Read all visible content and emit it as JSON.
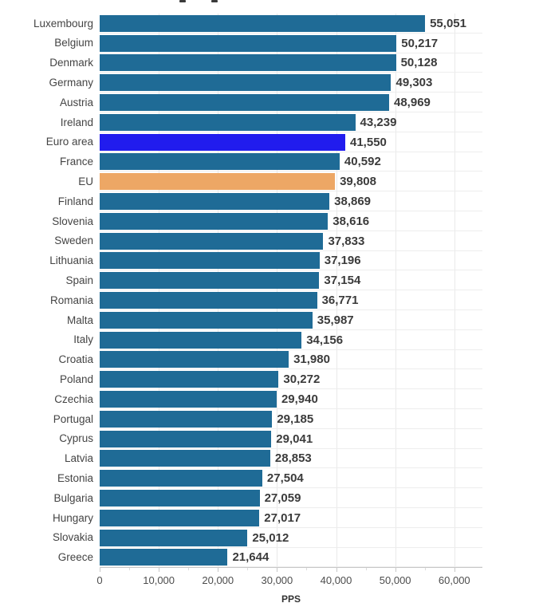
{
  "chart_data": {
    "type": "bar",
    "orientation": "horizontal",
    "categories": [
      "Luxembourg",
      "Belgium",
      "Denmark",
      "Germany",
      "Austria",
      "Ireland",
      "Euro area",
      "France",
      "EU",
      "Finland",
      "Slovenia",
      "Sweden",
      "Lithuania",
      "Spain",
      "Romania",
      "Malta",
      "Italy",
      "Croatia",
      "Poland",
      "Czechia",
      "Portugal",
      "Cyprus",
      "Latvia",
      "Estonia",
      "Bulgaria",
      "Hungary",
      "Slovakia",
      "Greece"
    ],
    "values": [
      55051,
      50217,
      50128,
      49303,
      48969,
      43239,
      41550,
      40592,
      39808,
      38869,
      38616,
      37833,
      37196,
      37154,
      36771,
      35987,
      34156,
      31980,
      30272,
      29940,
      29185,
      29041,
      28853,
      27504,
      27059,
      27017,
      25012,
      21644
    ],
    "value_labels": [
      "55,051",
      "50,217",
      "50,128",
      "49,303",
      "48,969",
      "43,239",
      "41,550",
      "40,592",
      "39,808",
      "38,869",
      "38,616",
      "37,833",
      "37,196",
      "37,154",
      "36,771",
      "35,987",
      "34,156",
      "31,980",
      "30,272",
      "29,940",
      "29,185",
      "29,041",
      "28,853",
      "27,504",
      "27,059",
      "27,017",
      "25,012",
      "21,644"
    ],
    "bar_color": "#1f6b96",
    "highlights": {
      "Euro area": "#211cee",
      "EU": "#eda765"
    },
    "xlabel": "PPS",
    "xlim": [
      0,
      64750
    ],
    "x_ticks": [
      {
        "value": 0,
        "label": "0"
      },
      {
        "value": 10000,
        "label": "10,000"
      },
      {
        "value": 20000,
        "label": "20,000"
      },
      {
        "value": 30000,
        "label": "30,000"
      },
      {
        "value": 40000,
        "label": "40,000"
      },
      {
        "value": 50000,
        "label": "50,000"
      },
      {
        "value": 60000,
        "label": "60,000"
      }
    ],
    "x_minor_ticks": [
      5000,
      15000,
      25000,
      35000,
      45000,
      55000
    ],
    "grid": "vertical-light, horizontal row separators",
    "legend": "none"
  }
}
